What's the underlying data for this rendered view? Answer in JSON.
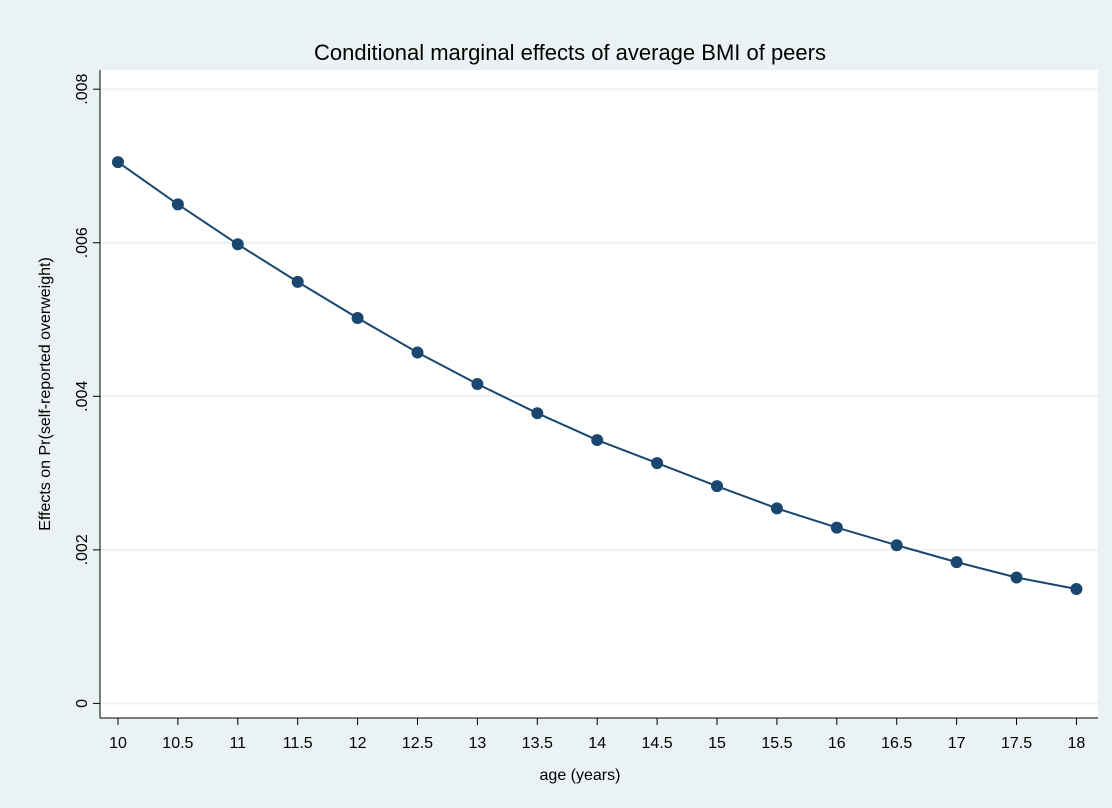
{
  "chart_data": {
    "type": "line",
    "title": "Conditional marginal effects of average BMI of peers",
    "x_label": "age (years)",
    "y_label": "Effects on Pr(self-reported overweight)",
    "x": [
      10,
      10.5,
      11,
      11.5,
      12,
      12.5,
      13,
      13.5,
      14,
      14.5,
      15,
      15.5,
      16,
      16.5,
      17,
      17.5,
      18
    ],
    "values": [
      0.00705,
      0.0065,
      0.00598,
      0.00549,
      0.00502,
      0.00457,
      0.00416,
      0.00378,
      0.00343,
      0.00313,
      0.00283,
      0.00254,
      0.00229,
      0.00206,
      0.00184,
      0.00164,
      0.00149
    ],
    "color": "#1a476f",
    "xlim": [
      9.85,
      18.18
    ],
    "ylim": [
      -0.00019,
      0.00825
    ],
    "xticks": [
      10,
      10.5,
      11,
      11.5,
      12,
      12.5,
      13,
      13.5,
      14,
      14.5,
      15,
      15.5,
      16,
      16.5,
      17,
      17.5,
      18
    ],
    "yticks": [
      {
        "value": 0,
        "label": "0"
      },
      {
        "value": 0.002,
        "label": ".002"
      },
      {
        "value": 0.004,
        "label": ".004"
      },
      {
        "value": 0.006,
        "label": ".006"
      },
      {
        "value": 0.008,
        "label": ".008"
      }
    ],
    "grid": true
  }
}
